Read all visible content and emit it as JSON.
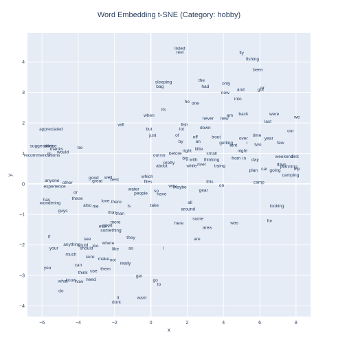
{
  "chart_data": {
    "type": "scatter",
    "title": "Word Embedding t-SNE (Category: hobby)",
    "xlabel": "x",
    "ylabel": "y",
    "xlim": [
      -6.8,
      8.8
    ],
    "ylim": [
      -4.35,
      4.95
    ],
    "x_ticks": [
      -6,
      -4,
      -2,
      0,
      2,
      4,
      6,
      8
    ],
    "x_tick_labels": [
      "−6",
      "−4",
      "−2",
      "0",
      "2",
      "4",
      "6",
      "8"
    ],
    "y_ticks": [
      -4,
      -3,
      -2,
      -1,
      0,
      1,
      2,
      3,
      4
    ],
    "y_tick_labels": [
      "−4",
      "−3",
      "−2",
      "−1",
      "0",
      "1",
      "2",
      "3",
      "4"
    ],
    "grid": true,
    "background": "#e5ecf6",
    "text_color": "#2a3f5f",
    "points": [
      {
        "label": "listed",
        "x": 1.6,
        "y": 4.45
      },
      {
        "label": "reel",
        "x": 1.6,
        "y": 4.33
      },
      {
        "label": "fly",
        "x": 5.0,
        "y": 4.3
      },
      {
        "label": "fishing",
        "x": 5.6,
        "y": 4.1
      },
      {
        "label": "been",
        "x": 5.9,
        "y": 3.75
      },
      {
        "label": "sleeping",
        "x": 0.7,
        "y": 3.35
      },
      {
        "label": "bag",
        "x": 0.5,
        "y": 3.2
      },
      {
        "label": "the",
        "x": 2.8,
        "y": 3.4
      },
      {
        "label": "had",
        "x": 3.0,
        "y": 3.2
      },
      {
        "label": "only",
        "x": 4.15,
        "y": 3.3
      },
      {
        "label": "now",
        "x": 4.1,
        "y": 3.0
      },
      {
        "label": "and",
        "x": 4.95,
        "y": 3.1
      },
      {
        "label": "got",
        "x": 6.05,
        "y": 3.1
      },
      {
        "label": "or",
        "x": 6.15,
        "y": 3.15
      },
      {
        "label": "into",
        "x": 4.8,
        "y": 2.8
      },
      {
        "label": "he",
        "x": 2.0,
        "y": 2.7
      },
      {
        "label": "one",
        "x": 2.45,
        "y": 2.65
      },
      {
        "label": "its",
        "x": 0.7,
        "y": 2.45
      },
      {
        "label": "when",
        "x": -0.1,
        "y": 2.25
      },
      {
        "label": "am",
        "x": 4.35,
        "y": 2.25
      },
      {
        "label": "back",
        "x": 5.1,
        "y": 2.3
      },
      {
        "label": "were",
        "x": 6.8,
        "y": 2.3
      },
      {
        "label": "we",
        "x": 8.05,
        "y": 2.2
      },
      {
        "label": "never",
        "x": 3.15,
        "y": 2.15
      },
      {
        "label": "new",
        "x": 4.05,
        "y": 2.15
      },
      {
        "label": "last",
        "x": 6.45,
        "y": 2.05
      },
      {
        "label": "will",
        "x": -1.65,
        "y": 1.95
      },
      {
        "label": "fish",
        "x": 1.85,
        "y": 1.95
      },
      {
        "label": "down",
        "x": 3.0,
        "y": 1.85
      },
      {
        "label": "but",
        "x": -0.1,
        "y": 1.8
      },
      {
        "label": "lot",
        "x": 1.7,
        "y": 1.8
      },
      {
        "label": "our",
        "x": 7.7,
        "y": 1.75
      },
      {
        "label": "appreciated",
        "x": -5.5,
        "y": 1.8
      },
      {
        "label": "just",
        "x": 0.1,
        "y": 1.6
      },
      {
        "label": "of",
        "x": 1.45,
        "y": 1.6
      },
      {
        "label": "off",
        "x": 2.45,
        "y": 1.55
      },
      {
        "label": "trout",
        "x": 3.6,
        "y": 1.55
      },
      {
        "label": "over",
        "x": 5.1,
        "y": 1.5
      },
      {
        "label": "time",
        "x": 5.85,
        "y": 1.6
      },
      {
        "label": "year",
        "x": 6.5,
        "y": 1.5
      },
      {
        "label": "by",
        "x": 1.65,
        "y": 1.4
      },
      {
        "label": "an",
        "x": 2.6,
        "y": 1.4
      },
      {
        "label": "getting",
        "x": 4.15,
        "y": 1.35
      },
      {
        "label": "tent",
        "x": 4.55,
        "y": 1.27
      },
      {
        "label": "i",
        "x": 5.3,
        "y": 1.35
      },
      {
        "label": "two",
        "x": 5.9,
        "y": 1.3
      },
      {
        "label": "few",
        "x": 7.15,
        "y": 1.35
      },
      {
        "label": "suggestions",
        "x": -6.0,
        "y": 1.25
      },
      {
        "label": "advice",
        "x": -5.55,
        "y": 1.25
      },
      {
        "label": "thanks",
        "x": -5.2,
        "y": 1.15
      },
      {
        "label": "be",
        "x": -3.9,
        "y": 1.2
      },
      {
        "label": "right",
        "x": 2.0,
        "y": 1.1
      },
      {
        "label": "little",
        "x": 2.65,
        "y": 1.15
      },
      {
        "label": "night",
        "x": 5.05,
        "y": 1.1
      },
      {
        "label": "small",
        "x": 3.35,
        "y": 1.0
      },
      {
        "label": "would",
        "x": -4.85,
        "y": 1.05
      },
      {
        "label": "recommendations",
        "x": -6.0,
        "y": 0.95
      },
      {
        "label": "out",
        "x": 0.3,
        "y": 0.95
      },
      {
        "label": "no",
        "x": 0.65,
        "y": 0.95
      },
      {
        "label": "before",
        "x": 1.35,
        "y": 1.0
      },
      {
        "label": "is",
        "x": -5.6,
        "y": 1.0
      },
      {
        "label": "weekend",
        "x": 7.35,
        "y": 0.9
      },
      {
        "label": "first",
        "x": 7.95,
        "y": 0.9
      },
      {
        "label": "big",
        "x": 1.9,
        "y": 0.85
      },
      {
        "label": "with",
        "x": 2.35,
        "y": 0.8
      },
      {
        "label": "thinking",
        "x": 3.35,
        "y": 0.8
      },
      {
        "label": "from",
        "x": 4.7,
        "y": 0.85
      },
      {
        "label": "in",
        "x": 5.15,
        "y": 0.85
      },
      {
        "label": "day",
        "x": 5.75,
        "y": 0.8
      },
      {
        "label": "pretty",
        "x": 1.0,
        "y": 0.7
      },
      {
        "label": "river",
        "x": 2.8,
        "y": 0.65
      },
      {
        "label": "about",
        "x": 0.6,
        "y": 0.6
      },
      {
        "label": "while",
        "x": 2.25,
        "y": 0.6
      },
      {
        "label": "trying",
        "x": 3.8,
        "y": 0.6
      },
      {
        "label": "days",
        "x": 7.2,
        "y": 0.65
      },
      {
        "label": "planning",
        "x": 7.6,
        "y": 0.58
      },
      {
        "label": "trip",
        "x": 8.05,
        "y": 0.5
      },
      {
        "label": "car",
        "x": 6.25,
        "y": 0.5
      },
      {
        "label": "plan",
        "x": 5.65,
        "y": 0.45
      },
      {
        "label": "going",
        "x": 6.85,
        "y": 0.45
      },
      {
        "label": "camping",
        "x": 7.7,
        "y": 0.3
      },
      {
        "label": "which",
        "x": -0.2,
        "y": 0.25
      },
      {
        "label": "good",
        "x": -3.15,
        "y": 0.2
      },
      {
        "label": "well",
        "x": -2.35,
        "y": 0.22
      },
      {
        "label": "anyone",
        "x": -5.45,
        "y": 0.12
      },
      {
        "label": "other",
        "x": -4.6,
        "y": 0.05
      },
      {
        "label": "great",
        "x": -2.95,
        "y": 0.1
      },
      {
        "label": "best",
        "x": -2.0,
        "y": 0.15
      },
      {
        "label": "flies",
        "x": -0.15,
        "y": 0.08
      },
      {
        "label": "this",
        "x": 3.25,
        "y": 0.08
      },
      {
        "label": "camp",
        "x": 5.95,
        "y": 0.06
      },
      {
        "label": "way",
        "x": 1.2,
        "y": -0.05
      },
      {
        "label": "maybe",
        "x": 1.6,
        "y": -0.1
      },
      {
        "label": "on",
        "x": 3.9,
        "y": -0.04
      },
      {
        "label": "experience",
        "x": -5.3,
        "y": -0.08
      },
      {
        "label": "water",
        "x": -0.95,
        "y": -0.17
      },
      {
        "label": "gear",
        "x": 2.9,
        "y": -0.2
      },
      {
        "label": "or",
        "x": -4.15,
        "y": -0.27
      },
      {
        "label": "people",
        "x": -0.55,
        "y": -0.3
      },
      {
        "label": "so",
        "x": 0.3,
        "y": -0.22
      },
      {
        "label": "have",
        "x": 0.6,
        "y": -0.32
      },
      {
        "label": "these",
        "x": -4.05,
        "y": -0.47
      },
      {
        "label": "has",
        "x": -5.75,
        "y": -0.52
      },
      {
        "label": "love",
        "x": -2.5,
        "y": -0.55
      },
      {
        "label": "there",
        "x": -1.9,
        "y": -0.58
      },
      {
        "label": "all",
        "x": 2.15,
        "y": -0.6
      },
      {
        "label": "wondering",
        "x": -5.55,
        "y": -0.62
      },
      {
        "label": "also",
        "x": -3.5,
        "y": -0.7
      },
      {
        "label": "me",
        "x": -3.05,
        "y": -0.73
      },
      {
        "label": "is",
        "x": -1.2,
        "y": -0.72
      },
      {
        "label": "take",
        "x": 0.2,
        "y": -0.7
      },
      {
        "label": "looking",
        "x": 6.95,
        "y": -0.72
      },
      {
        "label": "around",
        "x": 2.05,
        "y": -0.82
      },
      {
        "label": "guys",
        "x": -4.85,
        "y": -0.88
      },
      {
        "label": "that",
        "x": -2.15,
        "y": -0.93
      },
      {
        "label": "than",
        "x": -1.7,
        "y": -0.97
      },
      {
        "label": "some",
        "x": 2.6,
        "y": -1.13
      },
      {
        "label": "for",
        "x": 6.55,
        "y": -1.2
      },
      {
        "label": "more",
        "x": -1.95,
        "y": -1.25
      },
      {
        "label": "here",
        "x": 1.55,
        "y": -1.28
      },
      {
        "label": "was",
        "x": 4.6,
        "y": -1.27
      },
      {
        "label": "even",
        "x": -2.6,
        "y": -1.38
      },
      {
        "label": "good",
        "x": -2.4,
        "y": -1.35
      },
      {
        "label": "area",
        "x": 3.1,
        "y": -1.43
      },
      {
        "label": "something",
        "x": -2.2,
        "y": -1.52
      },
      {
        "label": "if",
        "x": -5.6,
        "y": -1.72
      },
      {
        "label": "they",
        "x": -1.1,
        "y": -1.75
      },
      {
        "label": "see",
        "x": -3.5,
        "y": -1.8
      },
      {
        "label": "are",
        "x": 2.55,
        "y": -1.8
      },
      {
        "label": "where",
        "x": -2.35,
        "y": -1.93
      },
      {
        "label": "anything",
        "x": -4.35,
        "y": -1.98
      },
      {
        "label": "could",
        "x": -3.75,
        "y": -2.0
      },
      {
        "label": "too",
        "x": -3.05,
        "y": -2.02
      },
      {
        "label": "your",
        "x": -5.35,
        "y": -2.1
      },
      {
        "label": "should",
        "x": -3.55,
        "y": -2.1
      },
      {
        "label": "like",
        "x": -1.95,
        "y": -2.12
      },
      {
        "label": "as",
        "x": -1.1,
        "y": -2.1
      },
      {
        "label": "i",
        "x": 0.7,
        "y": -2.1
      },
      {
        "label": "much",
        "x": -4.4,
        "y": -2.3
      },
      {
        "label": "sure",
        "x": -3.35,
        "y": -2.38
      },
      {
        "label": "make",
        "x": -2.6,
        "y": -2.45
      },
      {
        "label": "not",
        "x": -2.1,
        "y": -2.48
      },
      {
        "label": "really",
        "x": -1.4,
        "y": -2.6
      },
      {
        "label": "can",
        "x": -4.0,
        "y": -2.65
      },
      {
        "label": "you",
        "x": -5.7,
        "y": -2.75
      },
      {
        "label": "them",
        "x": -2.5,
        "y": -2.78
      },
      {
        "label": "use",
        "x": -3.15,
        "y": -2.85
      },
      {
        "label": "think",
        "x": -3.75,
        "y": -2.9
      },
      {
        "label": "get",
        "x": -0.65,
        "y": -3.02
      },
      {
        "label": "what",
        "x": -4.85,
        "y": -3.18
      },
      {
        "label": "know",
        "x": -4.4,
        "y": -3.15
      },
      {
        "label": "how",
        "x": -3.95,
        "y": -3.2
      },
      {
        "label": "need",
        "x": -3.3,
        "y": -3.13
      },
      {
        "label": "go",
        "x": 0.25,
        "y": -3.15
      },
      {
        "label": "to",
        "x": 0.45,
        "y": -3.28
      },
      {
        "label": "do",
        "x": -4.95,
        "y": -3.5
      },
      {
        "label": "it",
        "x": -1.8,
        "y": -3.72
      },
      {
        "label": "want",
        "x": -0.5,
        "y": -3.72
      },
      {
        "label": "dont",
        "x": -1.9,
        "y": -3.87
      }
    ]
  }
}
